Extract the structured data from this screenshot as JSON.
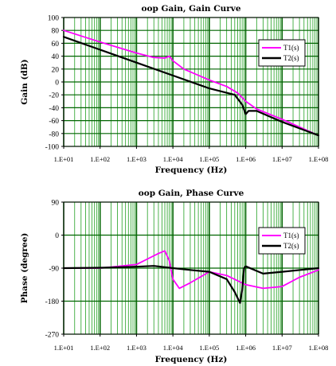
{
  "chart_data": [
    {
      "type": "line",
      "title": "oop Gain, Gain Curve",
      "xlabel": "Frequency (Hz)",
      "ylabel": "Gain (dB)",
      "x_scale": "log",
      "xlim": [
        10,
        100000000
      ],
      "ylim": [
        -100,
        100
      ],
      "y_ticks": [
        "100",
        "80",
        "60",
        "40",
        "20",
        "0",
        "-20",
        "-40",
        "-60",
        "-80",
        "-100"
      ],
      "x_ticks": [
        "1.E+01",
        "1.E+02",
        "1.E+03",
        "1.E+04",
        "1.E+05",
        "1.E+06",
        "1.E+07",
        "1.E+08"
      ],
      "grid": true,
      "legend_position": "top-right",
      "series": [
        {
          "name": "T1(s)",
          "color": "#ff00ff",
          "x": [
            10,
            100,
            1000,
            3000,
            6000,
            8000,
            10000,
            20000,
            100000,
            300000,
            600000,
            1000000,
            2000000,
            10000000,
            100000000
          ],
          "y": [
            80,
            62,
            45,
            38,
            37,
            40,
            33,
            20,
            3,
            -7,
            -17,
            -30,
            -42,
            -58,
            -83
          ]
        },
        {
          "name": "T2(s)",
          "color": "#000000",
          "x": [
            10,
            100,
            1000,
            10000,
            100000,
            500000,
            800000,
            1000000,
            1200000,
            2000000,
            10000000,
            100000000
          ],
          "y": [
            70,
            50,
            30,
            10,
            -10,
            -20,
            -35,
            -50,
            -45,
            -45,
            -62,
            -83
          ]
        }
      ]
    },
    {
      "type": "line",
      "title": "oop Gain, Phase Curve",
      "xlabel": "Frequency (Hz)",
      "ylabel": "Phase (degree)",
      "x_scale": "log",
      "xlim": [
        10,
        100000000
      ],
      "ylim": [
        -270,
        90
      ],
      "y_ticks": [
        "90",
        "0",
        "-90",
        "-180",
        "-270"
      ],
      "x_ticks": [
        "1.E+01",
        "1.E+02",
        "1.E+03",
        "1.E+04",
        "1.E+05",
        "1.E+06",
        "1.E+07",
        "1.E+08"
      ],
      "grid": true,
      "legend_position": "top-right",
      "series": [
        {
          "name": "T1(s)",
          "color": "#ff00ff",
          "x": [
            10,
            100,
            1000,
            2000,
            4000,
            6000,
            8000,
            10000,
            15000,
            30000,
            100000,
            300000,
            1000000,
            3000000,
            10000000,
            30000000,
            100000000
          ],
          "y": [
            -90,
            -90,
            -80,
            -65,
            -50,
            -43,
            -70,
            -120,
            -145,
            -130,
            -100,
            -110,
            -135,
            -145,
            -140,
            -115,
            -95
          ]
        },
        {
          "name": "T2(s)",
          "color": "#000000",
          "x": [
            10,
            100,
            1000,
            3000,
            10000,
            30000,
            100000,
            300000,
            500000,
            700000,
            800000,
            900000,
            1000000,
            3000000,
            10000000,
            100000000
          ],
          "y": [
            -90,
            -89,
            -86,
            -84,
            -90,
            -95,
            -100,
            -120,
            -155,
            -185,
            -150,
            -90,
            -85,
            -105,
            -100,
            -90
          ]
        }
      ]
    }
  ]
}
